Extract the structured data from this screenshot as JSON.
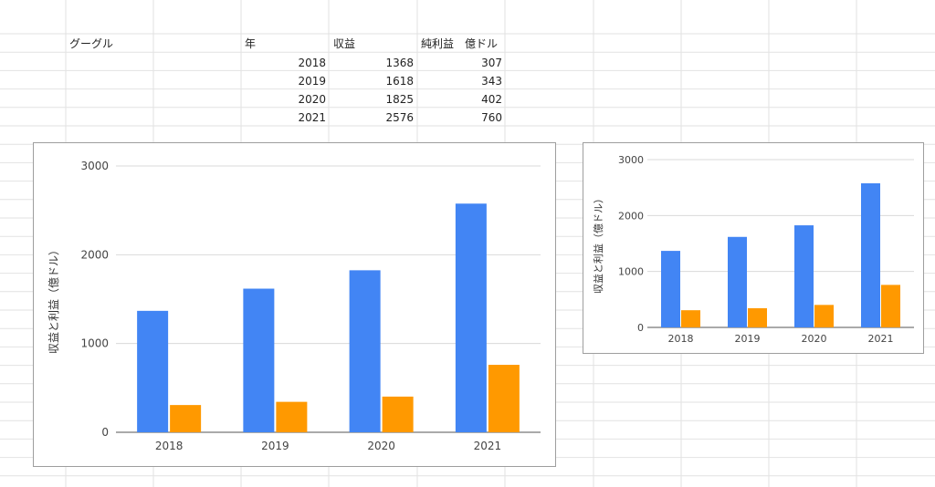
{
  "sheet": {
    "title_cell": "グーグル",
    "headers": [
      "年",
      "収益",
      "純利益　億ドル"
    ],
    "rows": [
      [
        "2018",
        "1368",
        "307"
      ],
      [
        "2019",
        "1618",
        "343"
      ],
      [
        "2020",
        "1825",
        "402"
      ],
      [
        "2021",
        "2576",
        "760"
      ]
    ]
  },
  "chart_data": [
    {
      "type": "bar",
      "categories": [
        "2018",
        "2019",
        "2020",
        "2021"
      ],
      "series": [
        {
          "values": [
            1368,
            1618,
            1825,
            2576
          ],
          "color": "#4285f4"
        },
        {
          "values": [
            307,
            343,
            402,
            760
          ],
          "color": "#ff9900"
        }
      ],
      "ylabel": "収益と利益（億ドル）",
      "ylim": [
        0,
        3000
      ],
      "yticks": [
        "0",
        "1000",
        "2000",
        "3000"
      ],
      "grid": true,
      "legend": "none"
    },
    {
      "type": "bar",
      "categories": [
        "2018",
        "2019",
        "2020",
        "2021"
      ],
      "series": [
        {
          "values": [
            1368,
            1618,
            1825,
            2576
          ],
          "color": "#4285f4"
        },
        {
          "values": [
            307,
            343,
            402,
            760
          ],
          "color": "#ff9900"
        }
      ],
      "ylabel": "収益と利益（億ドル）",
      "ylim": [
        0,
        3000
      ],
      "yticks": [
        "0",
        "1000",
        "2000",
        "3000"
      ],
      "grid": true,
      "legend": "none"
    }
  ]
}
